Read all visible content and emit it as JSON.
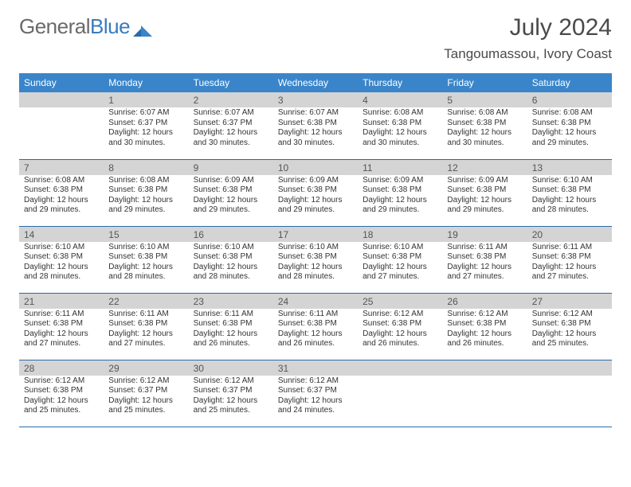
{
  "logo": {
    "text1": "General",
    "text2": "Blue"
  },
  "title": "July 2024",
  "location": "Tangoumassou, Ivory Coast",
  "colors": {
    "header_bg": "#3a85c9",
    "header_text": "#ffffff",
    "row_divider": "#2a6aa8",
    "shaded_bg": "#d4d4d4",
    "body_text": "#333333",
    "daynum_text": "#555555",
    "logo_gray": "#6a6a6a",
    "logo_blue": "#3a7bbf"
  },
  "weekdays": [
    "Sunday",
    "Monday",
    "Tuesday",
    "Wednesday",
    "Thursday",
    "Friday",
    "Saturday"
  ],
  "weeks": [
    [
      null,
      {
        "n": "1",
        "sr": "6:07 AM",
        "ss": "6:37 PM",
        "dl": "12 hours and 30 minutes."
      },
      {
        "n": "2",
        "sr": "6:07 AM",
        "ss": "6:37 PM",
        "dl": "12 hours and 30 minutes."
      },
      {
        "n": "3",
        "sr": "6:07 AM",
        "ss": "6:38 PM",
        "dl": "12 hours and 30 minutes."
      },
      {
        "n": "4",
        "sr": "6:08 AM",
        "ss": "6:38 PM",
        "dl": "12 hours and 30 minutes."
      },
      {
        "n": "5",
        "sr": "6:08 AM",
        "ss": "6:38 PM",
        "dl": "12 hours and 30 minutes."
      },
      {
        "n": "6",
        "sr": "6:08 AM",
        "ss": "6:38 PM",
        "dl": "12 hours and 29 minutes."
      }
    ],
    [
      {
        "n": "7",
        "sr": "6:08 AM",
        "ss": "6:38 PM",
        "dl": "12 hours and 29 minutes."
      },
      {
        "n": "8",
        "sr": "6:08 AM",
        "ss": "6:38 PM",
        "dl": "12 hours and 29 minutes."
      },
      {
        "n": "9",
        "sr": "6:09 AM",
        "ss": "6:38 PM",
        "dl": "12 hours and 29 minutes."
      },
      {
        "n": "10",
        "sr": "6:09 AM",
        "ss": "6:38 PM",
        "dl": "12 hours and 29 minutes."
      },
      {
        "n": "11",
        "sr": "6:09 AM",
        "ss": "6:38 PM",
        "dl": "12 hours and 29 minutes."
      },
      {
        "n": "12",
        "sr": "6:09 AM",
        "ss": "6:38 PM",
        "dl": "12 hours and 29 minutes."
      },
      {
        "n": "13",
        "sr": "6:10 AM",
        "ss": "6:38 PM",
        "dl": "12 hours and 28 minutes."
      }
    ],
    [
      {
        "n": "14",
        "sr": "6:10 AM",
        "ss": "6:38 PM",
        "dl": "12 hours and 28 minutes."
      },
      {
        "n": "15",
        "sr": "6:10 AM",
        "ss": "6:38 PM",
        "dl": "12 hours and 28 minutes."
      },
      {
        "n": "16",
        "sr": "6:10 AM",
        "ss": "6:38 PM",
        "dl": "12 hours and 28 minutes."
      },
      {
        "n": "17",
        "sr": "6:10 AM",
        "ss": "6:38 PM",
        "dl": "12 hours and 28 minutes."
      },
      {
        "n": "18",
        "sr": "6:10 AM",
        "ss": "6:38 PM",
        "dl": "12 hours and 27 minutes."
      },
      {
        "n": "19",
        "sr": "6:11 AM",
        "ss": "6:38 PM",
        "dl": "12 hours and 27 minutes."
      },
      {
        "n": "20",
        "sr": "6:11 AM",
        "ss": "6:38 PM",
        "dl": "12 hours and 27 minutes."
      }
    ],
    [
      {
        "n": "21",
        "sr": "6:11 AM",
        "ss": "6:38 PM",
        "dl": "12 hours and 27 minutes."
      },
      {
        "n": "22",
        "sr": "6:11 AM",
        "ss": "6:38 PM",
        "dl": "12 hours and 27 minutes."
      },
      {
        "n": "23",
        "sr": "6:11 AM",
        "ss": "6:38 PM",
        "dl": "12 hours and 26 minutes."
      },
      {
        "n": "24",
        "sr": "6:11 AM",
        "ss": "6:38 PM",
        "dl": "12 hours and 26 minutes."
      },
      {
        "n": "25",
        "sr": "6:12 AM",
        "ss": "6:38 PM",
        "dl": "12 hours and 26 minutes."
      },
      {
        "n": "26",
        "sr": "6:12 AM",
        "ss": "6:38 PM",
        "dl": "12 hours and 26 minutes."
      },
      {
        "n": "27",
        "sr": "6:12 AM",
        "ss": "6:38 PM",
        "dl": "12 hours and 25 minutes."
      }
    ],
    [
      {
        "n": "28",
        "sr": "6:12 AM",
        "ss": "6:38 PM",
        "dl": "12 hours and 25 minutes."
      },
      {
        "n": "29",
        "sr": "6:12 AM",
        "ss": "6:37 PM",
        "dl": "12 hours and 25 minutes."
      },
      {
        "n": "30",
        "sr": "6:12 AM",
        "ss": "6:37 PM",
        "dl": "12 hours and 25 minutes."
      },
      {
        "n": "31",
        "sr": "6:12 AM",
        "ss": "6:37 PM",
        "dl": "12 hours and 24 minutes."
      },
      null,
      null,
      null
    ]
  ],
  "labels": {
    "sunrise": "Sunrise:",
    "sunset": "Sunset:",
    "daylight": "Daylight:"
  }
}
